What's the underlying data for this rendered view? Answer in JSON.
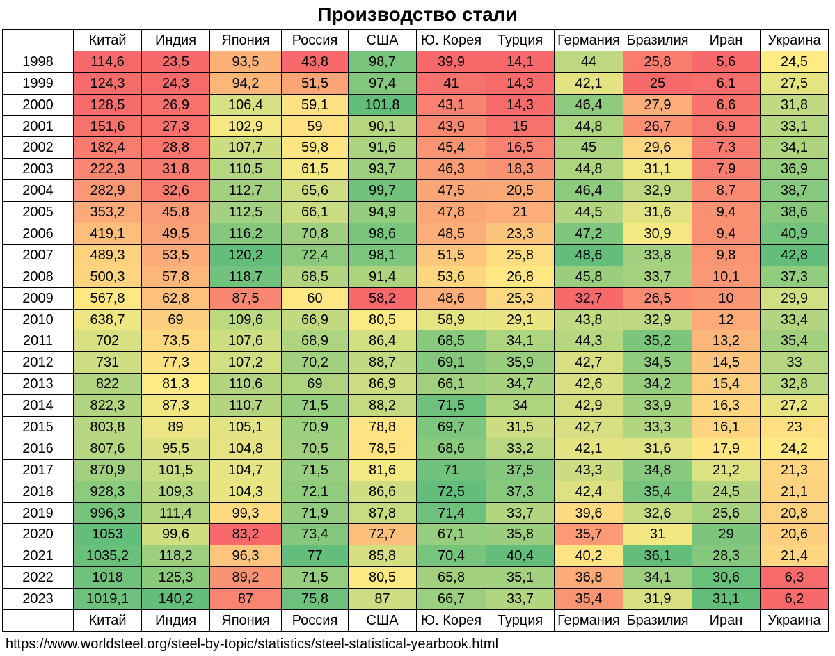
{
  "title": "Производство стали",
  "source": "https://www.worldsteel.org/steel-by-topic/statistics/steel-statistical-yearbook.html",
  "chart_data": {
    "type": "heatmap",
    "title": "Производство стали",
    "color_scale": "per-column, red (low) → yellow (mid) → green (high)",
    "columns": [
      "Китай",
      "Индия",
      "Япония",
      "Россия",
      "США",
      "Ю. Корея",
      "Турция",
      "Германия",
      "Бразилия",
      "Иран",
      "Украина"
    ],
    "years": [
      "1998",
      "1999",
      "2000",
      "2001",
      "2002",
      "2003",
      "2004",
      "2005",
      "2006",
      "2007",
      "2008",
      "2009",
      "2010",
      "2011",
      "2012",
      "2013",
      "2014",
      "2015",
      "2016",
      "2017",
      "2018",
      "2019",
      "2020",
      "2021",
      "2022",
      "2023"
    ],
    "values": [
      [
        "114,6",
        "23,5",
        "93,5",
        "43,8",
        "98,7",
        "39,9",
        "14,1",
        "44",
        "25,8",
        "5,6",
        "24,5"
      ],
      [
        "124,3",
        "24,3",
        "94,2",
        "51,5",
        "97,4",
        "41",
        "14,3",
        "42,1",
        "25",
        "6,1",
        "27,5"
      ],
      [
        "128,5",
        "26,9",
        "106,4",
        "59,1",
        "101,8",
        "43,1",
        "14,3",
        "46,4",
        "27,9",
        "6,6",
        "31,8"
      ],
      [
        "151,6",
        "27,3",
        "102,9",
        "59",
        "90,1",
        "43,9",
        "15",
        "44,8",
        "26,7",
        "6,9",
        "33,1"
      ],
      [
        "182,4",
        "28,8",
        "107,7",
        "59,8",
        "91,6",
        "45,4",
        "16,5",
        "45",
        "29,6",
        "7,3",
        "34,1"
      ],
      [
        "222,3",
        "31,8",
        "110,5",
        "61,5",
        "93,7",
        "46,3",
        "18,3",
        "44,8",
        "31,1",
        "7,9",
        "36,9"
      ],
      [
        "282,9",
        "32,6",
        "112,7",
        "65,6",
        "99,7",
        "47,5",
        "20,5",
        "46,4",
        "32,9",
        "8,7",
        "38,7"
      ],
      [
        "353,2",
        "45,8",
        "112,5",
        "66,1",
        "94,9",
        "47,8",
        "21",
        "44,5",
        "31,6",
        "9,4",
        "38,6"
      ],
      [
        "419,1",
        "49,5",
        "116,2",
        "70,8",
        "98,6",
        "48,5",
        "23,3",
        "47,2",
        "30,9",
        "9,4",
        "40,9"
      ],
      [
        "489,3",
        "53,5",
        "120,2",
        "72,4",
        "98,1",
        "51,5",
        "25,8",
        "48,6",
        "33,8",
        "9,8",
        "42,8"
      ],
      [
        "500,3",
        "57,8",
        "118,7",
        "68,5",
        "91,4",
        "53,6",
        "26,8",
        "45,8",
        "33,7",
        "10,1",
        "37,3"
      ],
      [
        "567,8",
        "62,8",
        "87,5",
        "60",
        "58,2",
        "48,6",
        "25,3",
        "32,7",
        "26,5",
        "10",
        "29,9"
      ],
      [
        "638,7",
        "69",
        "109,6",
        "66,9",
        "80,5",
        "58,9",
        "29,1",
        "43,8",
        "32,9",
        "12",
        "33,4"
      ],
      [
        "702",
        "73,5",
        "107,6",
        "68,9",
        "86,4",
        "68,5",
        "34,1",
        "44,3",
        "35,2",
        "13,2",
        "35,4"
      ],
      [
        "731",
        "77,3",
        "107,2",
        "70,2",
        "88,7",
        "69,1",
        "35,9",
        "42,7",
        "34,5",
        "14,5",
        "33"
      ],
      [
        "822",
        "81,3",
        "110,6",
        "69",
        "86,9",
        "66,1",
        "34,7",
        "42,6",
        "34,2",
        "15,4",
        "32,8"
      ],
      [
        "822,3",
        "87,3",
        "110,7",
        "71,5",
        "88,2",
        "71,5",
        "34",
        "42,9",
        "33,9",
        "16,3",
        "27,2"
      ],
      [
        "803,8",
        "89",
        "105,1",
        "70,9",
        "78,8",
        "69,7",
        "31,5",
        "42,7",
        "33,3",
        "16,1",
        "23"
      ],
      [
        "807,6",
        "95,5",
        "104,8",
        "70,5",
        "78,5",
        "68,6",
        "33,2",
        "42,1",
        "31,6",
        "17,9",
        "24,2"
      ],
      [
        "870,9",
        "101,5",
        "104,7",
        "71,5",
        "81,6",
        "71",
        "37,5",
        "43,3",
        "34,8",
        "21,2",
        "21,3"
      ],
      [
        "928,3",
        "109,3",
        "104,3",
        "72,1",
        "86,6",
        "72,5",
        "37,3",
        "42,4",
        "35,4",
        "24,5",
        "21,1"
      ],
      [
        "996,3",
        "111,4",
        "99,3",
        "71,9",
        "87,8",
        "71,4",
        "33,7",
        "39,6",
        "32,6",
        "25,6",
        "20,8"
      ],
      [
        "1053",
        "99,6",
        "83,2",
        "73,4",
        "72,7",
        "67,1",
        "35,8",
        "35,7",
        "31",
        "29",
        "20,6"
      ],
      [
        "1035,2",
        "118,2",
        "96,3",
        "77",
        "85,8",
        "70,4",
        "40,4",
        "40,2",
        "36,1",
        "28,3",
        "21,4"
      ],
      [
        "1018",
        "125,3",
        "89,2",
        "71,5",
        "80,5",
        "65,8",
        "35,1",
        "36,8",
        "34,1",
        "30,6",
        "6,3"
      ],
      [
        "1019,1",
        "140,2",
        "87",
        "75,8",
        "87",
        "66,7",
        "33,7",
        "35,4",
        "31,9",
        "31,1",
        "6,2"
      ]
    ]
  }
}
